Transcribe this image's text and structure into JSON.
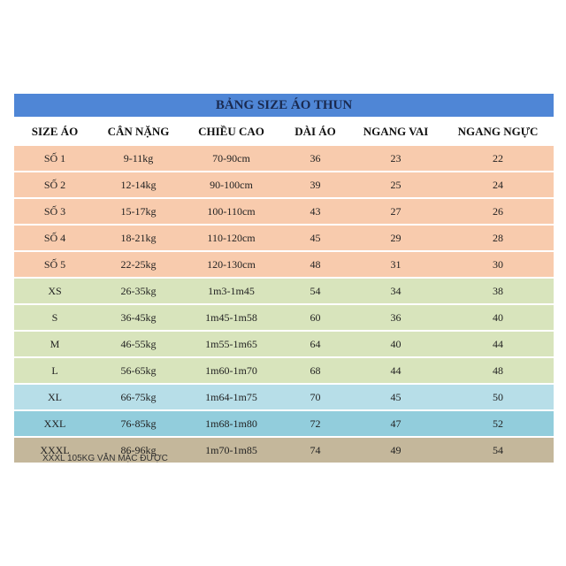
{
  "table": {
    "title": "BẢNG SIZE ÁO THUN",
    "title_color": "#4f86d6",
    "header": [
      "SIZE ÁO",
      "CÂN NẶNG",
      "CHIỀU CAO",
      "DÀI ÁO",
      "NGANG VAI",
      "NGANG NGỰC"
    ],
    "rows": [
      [
        "SỐ 1",
        "9-11kg",
        "70-90cm",
        36,
        23,
        22
      ],
      [
        "SỐ 2",
        "12-14kg",
        "90-100cm",
        39,
        25,
        24
      ],
      [
        "SỐ 3",
        "15-17kg",
        "100-110cm",
        43,
        27,
        26
      ],
      [
        "SỐ 4",
        "18-21kg",
        "110-120cm",
        45,
        29,
        28
      ],
      [
        "SỐ 5",
        "22-25kg",
        "120-130cm",
        48,
        31,
        30
      ],
      [
        "XS",
        "26-35kg",
        "1m3-1m45",
        54,
        34,
        38
      ],
      [
        "S",
        "36-45kg",
        "1m45-1m58",
        60,
        36,
        40
      ],
      [
        "M",
        "46-55kg",
        "1m55-1m65",
        64,
        40,
        44
      ],
      [
        "L",
        "56-65kg",
        "1m60-1m70",
        68,
        44,
        48
      ],
      [
        "XL",
        "66-75kg",
        "1m64-1m75",
        70,
        45,
        50
      ],
      [
        "XXL",
        "76-85kg",
        "1m68-1m80",
        72,
        47,
        52
      ],
      [
        "XXXL",
        "86-96kg",
        "1m70-1m85",
        74,
        49,
        54
      ]
    ],
    "row_colors": [
      "#f8cbad",
      "#f8cbad",
      "#f8cbad",
      "#f8cbad",
      "#f8cbad",
      "#d8e4bc",
      "#d8e4bc",
      "#d8e4bc",
      "#d8e4bc",
      "#b7dee8",
      "#92cddc",
      "#c4b79b"
    ],
    "note": "XXXL 105KG VẪN MẶC ĐƯỢC"
  }
}
